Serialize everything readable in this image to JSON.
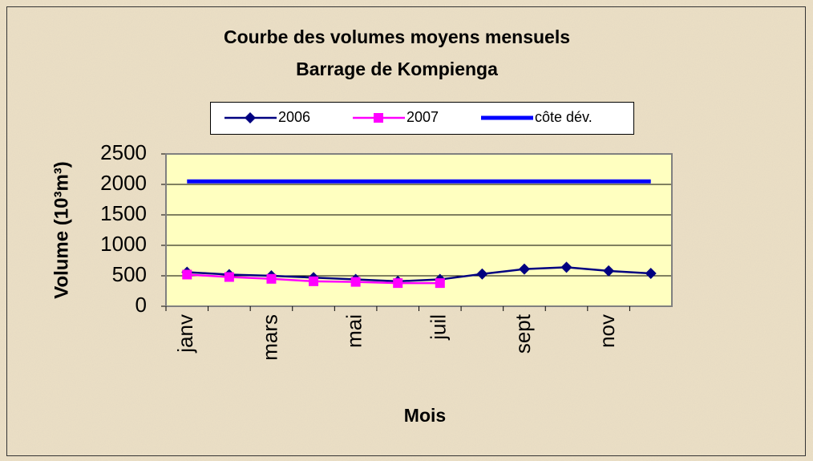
{
  "chart_data": {
    "type": "line",
    "title": [
      "Courbe des volumes moyens mensuels",
      "Barrage de Kompienga"
    ],
    "x_label": "Mois",
    "y_label": "Volume (10³m³)",
    "categories": [
      "janv",
      null,
      "mars",
      null,
      "mai",
      null,
      "juil",
      null,
      "sept",
      null,
      "nov",
      null
    ],
    "series": [
      {
        "name": "2006",
        "color": "#000080",
        "marker": "diamond",
        "values": [
          560,
          520,
          500,
          470,
          440,
          410,
          440,
          530,
          610,
          640,
          580,
          540
        ]
      },
      {
        "name": "2007",
        "color": "#ff00ff",
        "marker": "square",
        "values": [
          520,
          480,
          450,
          410,
          400,
          380,
          380,
          null,
          null,
          null,
          null,
          null
        ]
      },
      {
        "name": "côte dév.",
        "color": "#0000ff",
        "marker": "none",
        "values": [
          2050,
          2050,
          2050,
          2050,
          2050,
          2050,
          2050,
          2050,
          2050,
          2050,
          2050,
          2050
        ]
      }
    ],
    "ylim": [
      0,
      2500
    ],
    "yticks": [
      0,
      500,
      1000,
      1500,
      2000,
      2500
    ],
    "grid": true,
    "legend": "top"
  }
}
